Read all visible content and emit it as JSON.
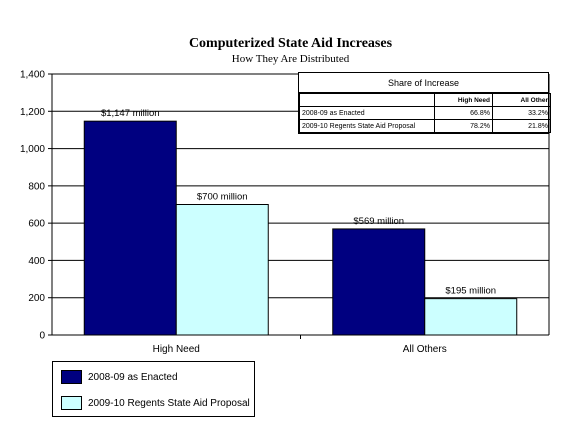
{
  "chart_data": {
    "type": "bar",
    "title": "Computerized State Aid Increases",
    "subtitle": "How They Are Distributed",
    "categories": [
      "High Need",
      "All Others"
    ],
    "series": [
      {
        "name": "2008-09 as Enacted",
        "values": [
          1147,
          569
        ],
        "labels": [
          "$1,147 million",
          "$569 million"
        ],
        "color": "#000080"
      },
      {
        "name": "2009-10 Regents State Aid Proposal",
        "values": [
          700,
          195
        ],
        "labels": [
          "$700 million",
          "$195 million"
        ],
        "color": "#ccffff"
      }
    ],
    "ylim": [
      0,
      1400
    ],
    "yticks": [
      "0",
      "200",
      "400",
      "600",
      "800",
      "1,000",
      "1,200",
      "1,400"
    ],
    "grid": true,
    "legend": "bottom-left"
  },
  "share_table": {
    "title": "Share of Increase",
    "headers": [
      "",
      "High Need",
      "All Other"
    ],
    "rows": [
      [
        "2008-09 as Enacted",
        "66.8%",
        "33.2%"
      ],
      [
        "2009-10 Regents State Aid Proposal",
        "78.2%",
        "21.8%"
      ]
    ]
  }
}
